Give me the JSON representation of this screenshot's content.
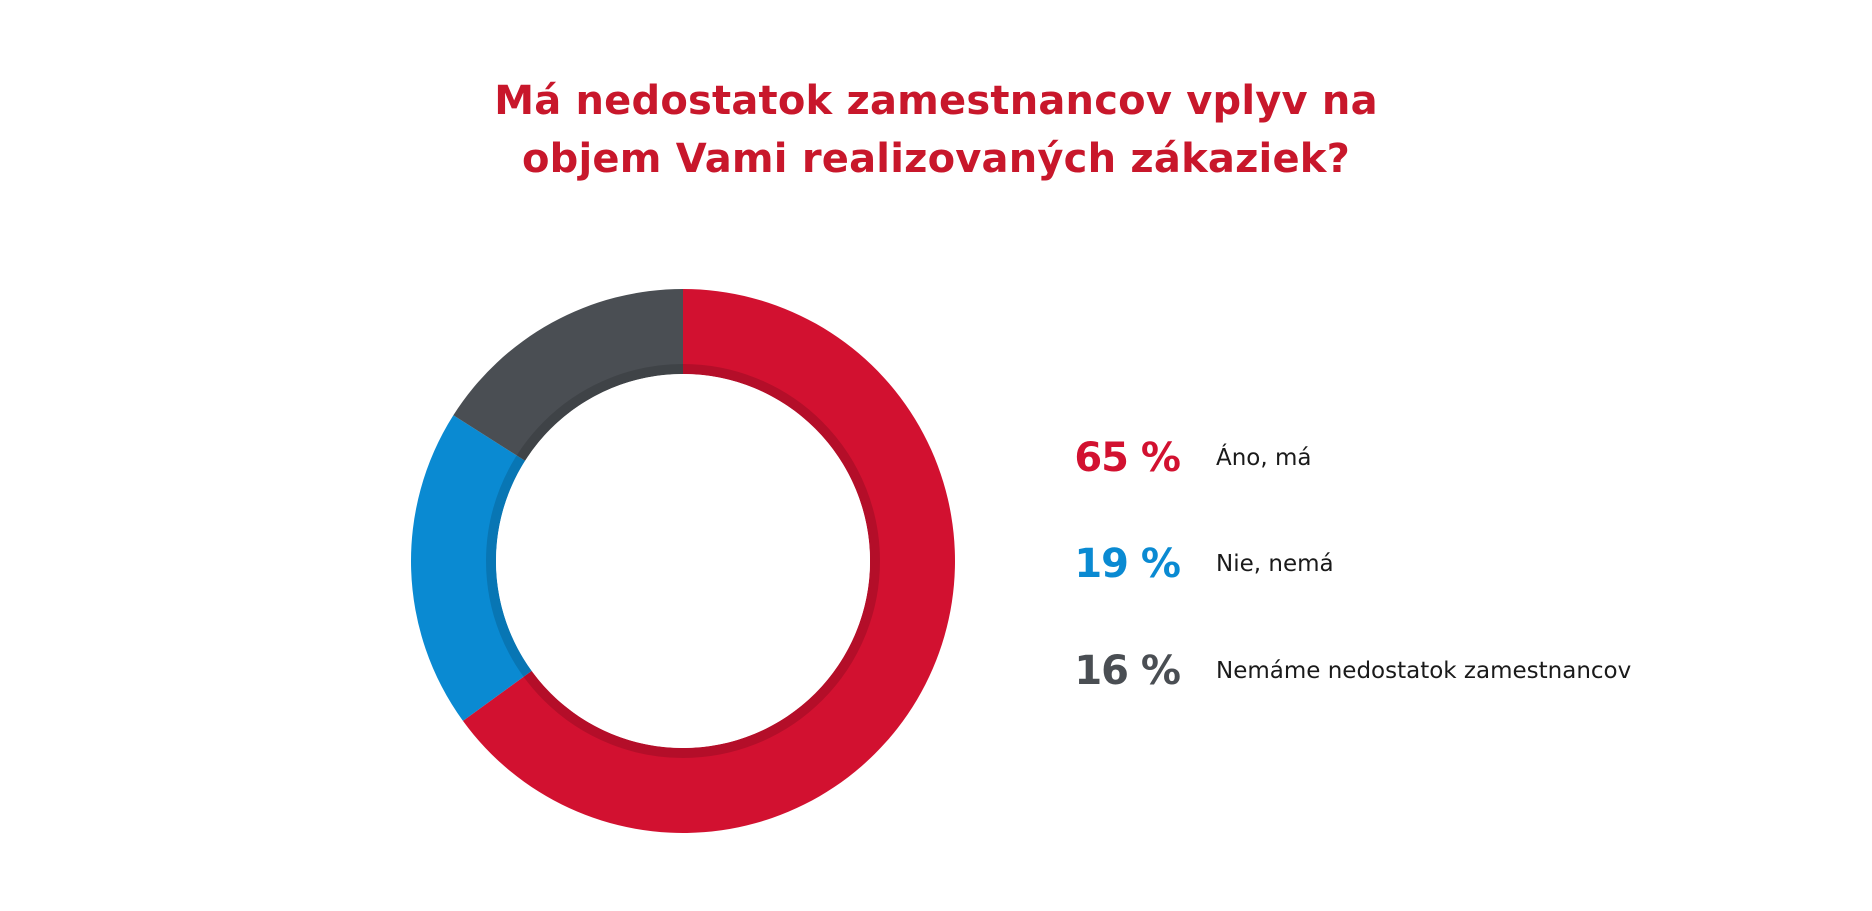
{
  "chart_data": {
    "type": "pie",
    "variant": "donut",
    "title_lines": [
      "Má nedostatok zamestnancov vplyv na",
      "objem Vami realizovaných zákaziek?"
    ],
    "categories": [
      "Áno, má",
      "Nie, nemá",
      "Nemáme nedostatok zamestnancov"
    ],
    "values": [
      65,
      19,
      16
    ],
    "value_labels": [
      "65 %",
      "19 %",
      "16 %"
    ],
    "colors": [
      "#d21130",
      "#0a8ad2",
      "#4a4e53"
    ],
    "legend": "right"
  },
  "colors": {
    "title": "#c8172b",
    "background": "#ffffff",
    "inner_shadow": "#b30f27"
  }
}
